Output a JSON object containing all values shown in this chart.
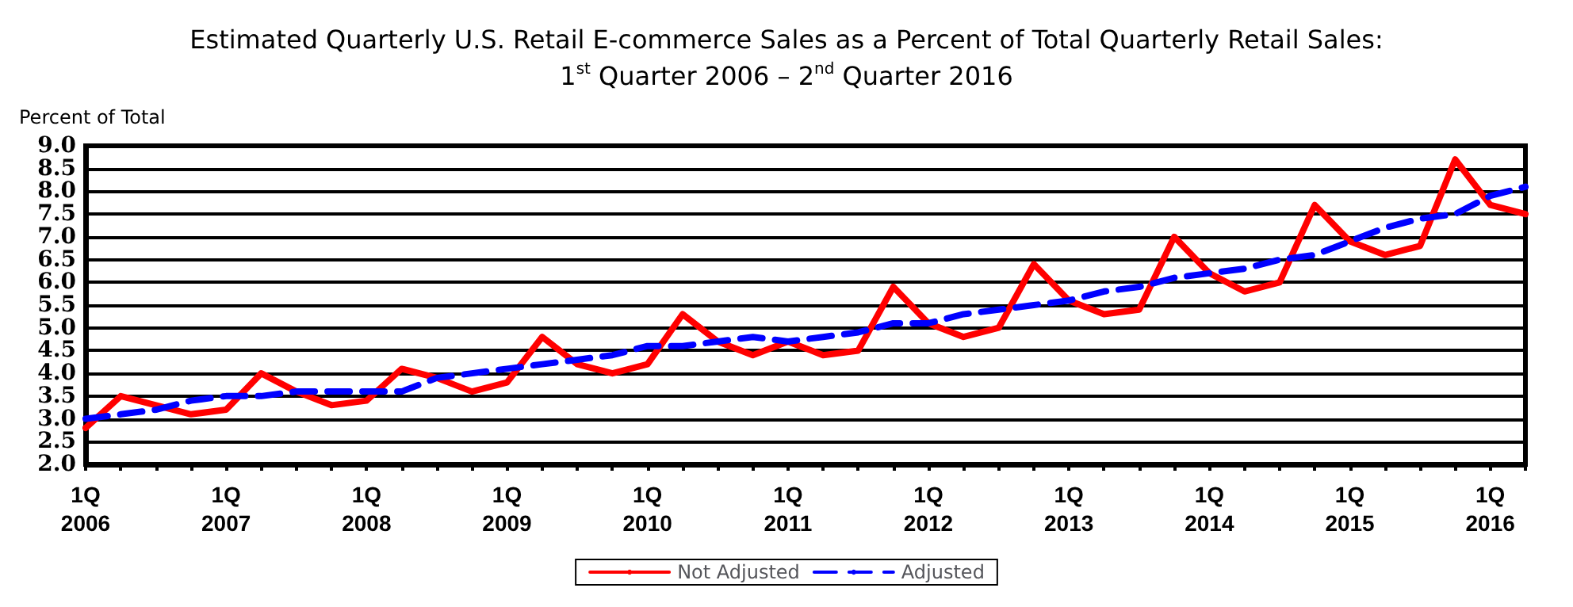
{
  "chart_data": {
    "type": "line",
    "title": "Estimated Quarterly U.S. Retail E-commerce Sales as a Percent of Total Quarterly Retail Sales:",
    "subtitle": "1$^{st}$ Quarter 2006 – 2$^{nd}$ Quarter 2016",
    "ylabel": "Percent of Total",
    "categories": [
      "1Q\n2006",
      null,
      null,
      null,
      "1Q\n2007",
      null,
      null,
      null,
      "1Q\n2008",
      null,
      null,
      null,
      "1Q\n2009",
      null,
      null,
      null,
      "1Q\n2010",
      null,
      null,
      null,
      "1Q\n2011",
      null,
      null,
      null,
      "1Q\n2012",
      null,
      null,
      null,
      "1Q\n2013",
      null,
      null,
      null,
      "1Q\n2014",
      null,
      null,
      null,
      "1Q\n2015",
      null,
      null,
      null,
      "1Q\n2016",
      null
    ],
    "series": [
      {
        "name": "Not Adjusted",
        "color": "#ff0000",
        "line_style": "solid",
        "values": [
          2.8,
          3.5,
          3.3,
          3.1,
          3.2,
          4.0,
          3.6,
          3.3,
          3.4,
          4.1,
          3.9,
          3.6,
          3.8,
          4.8,
          4.2,
          4.0,
          4.2,
          5.3,
          4.7,
          4.4,
          4.7,
          4.4,
          4.5,
          5.9,
          5.1,
          4.8,
          5.0,
          6.4,
          5.6,
          5.3,
          5.4,
          7.0,
          6.2,
          5.8,
          6.0,
          7.7,
          6.9,
          6.6,
          6.8,
          8.7,
          7.7,
          7.5
        ]
      },
      {
        "name": "Adjusted",
        "color": "#0000ff",
        "line_style": "dashed",
        "values": [
          3.0,
          3.1,
          3.2,
          3.4,
          3.5,
          3.5,
          3.6,
          3.6,
          3.6,
          3.6,
          3.9,
          4.0,
          4.1,
          4.2,
          4.3,
          4.4,
          4.6,
          4.6,
          4.7,
          4.8,
          4.7,
          4.8,
          4.9,
          5.1,
          5.1,
          5.3,
          5.4,
          5.5,
          5.6,
          5.8,
          5.9,
          6.1,
          6.2,
          6.3,
          6.5,
          6.6,
          6.9,
          7.2,
          7.4,
          7.5,
          7.9,
          8.1
        ]
      }
    ],
    "ylim": [
      2.0,
      9.0
    ],
    "yticks": [
      {
        "value": 2,
        "label": "2.0"
      },
      2.5,
      {
        "value": 3,
        "label": "3.0"
      },
      3.5,
      {
        "value": 4,
        "label": "4.0"
      },
      4.5,
      {
        "value": 5,
        "label": "5.0"
      },
      5.5,
      {
        "value": 6,
        "label": "6.0"
      },
      6.5,
      {
        "value": 7,
        "label": "7.0"
      },
      7.5,
      {
        "value": 8,
        "label": "8.0"
      },
      8.5,
      {
        "value": 9,
        "label": "9.0"
      }
    ],
    "grid": "y",
    "legend": "bottom",
    "marker": "none"
  }
}
